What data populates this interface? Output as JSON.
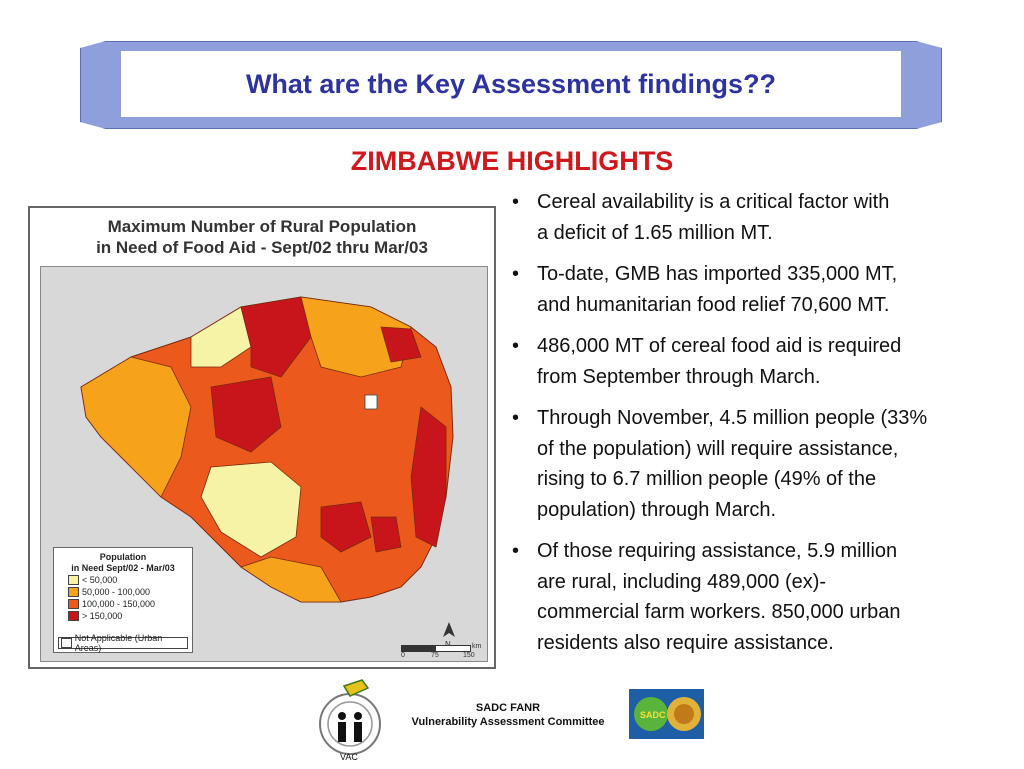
{
  "slide": {
    "title": "What are the Key Assessment findings??",
    "subtitle": "ZIMBABWE HIGHLIGHTS"
  },
  "map": {
    "title_line1": "Maximum Number of Rural Population",
    "title_line2": "in Need of Food Aid - Sept/02 thru Mar/03",
    "legend": {
      "title_line1": "Population",
      "title_line2": "in Need Sept/02 - Mar/03",
      "items": [
        {
          "label": "< 50,000",
          "color": "#f7f3a6"
        },
        {
          "label": "50,000 - 100,000",
          "color": "#f7a21b"
        },
        {
          "label": "100,000 - 150,000",
          "color": "#eb5a1c"
        },
        {
          "label": "> 150,000",
          "color": "#c8151b"
        }
      ],
      "na_label": "Not Applicable (Urban Areas)"
    },
    "north_label": "N",
    "scale_unit": "km",
    "scale_ticks": [
      "0",
      "75",
      "150"
    ]
  },
  "bullets": [
    "Cereal availability is a critical factor with\na deficit of 1.65 million MT.",
    "To-date, GMB has imported 335,000 MT,\nand humanitarian food relief 70,600 MT.",
    "486,000 MT of cereal food aid is required\nfrom September through March.",
    "Through November, 4.5 million people (33%\nof the population) will require assistance,\nrising to 6.7 million people  (49% of the\npopulation) through March.",
    "Of those requiring assistance, 5.9 million\nare rural, including 489,000 (ex)-\ncommercial farm workers.  850,000 urban\nresidents also require assistance."
  ],
  "footer": {
    "org_line1": "SADC FANR",
    "org_line2": "Vulnerability Assessment Committee",
    "left_logo_label": "VAC",
    "right_logo_label": "SADC"
  }
}
